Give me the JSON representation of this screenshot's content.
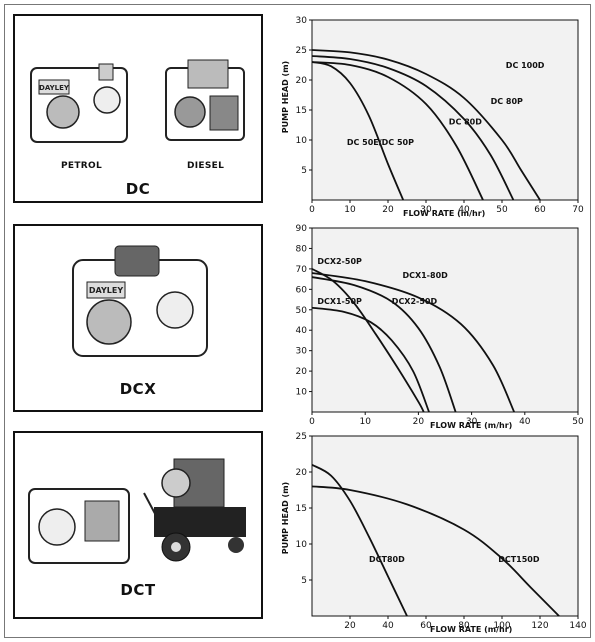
{
  "panels": [
    {
      "title": "DC",
      "captions": [
        "PETROL",
        "DIESEL"
      ]
    },
    {
      "title": "DCX",
      "captions": []
    },
    {
      "title": "DCT",
      "captions": []
    }
  ],
  "chart_data": [
    {
      "type": "line",
      "xlabel": "FLOW RATE (m/hr)",
      "ylabel": "PUMP HEAD (m)",
      "xlim": [
        0,
        70
      ],
      "ylim": [
        0,
        30
      ],
      "xticks": [
        "0",
        "10",
        "20",
        "30",
        "40",
        "50",
        "60",
        "70"
      ],
      "yticks": [
        "5",
        "10",
        "15",
        "20",
        "25",
        "30"
      ],
      "series": [
        {
          "name": "DC 100D",
          "points": [
            [
              0,
              25
            ],
            [
              10,
              24.6
            ],
            [
              20,
              23.4
            ],
            [
              30,
              21
            ],
            [
              40,
              17
            ],
            [
              50,
              10
            ],
            [
              55,
              5
            ],
            [
              60,
              0
            ]
          ]
        },
        {
          "name": "DC 80P",
          "points": [
            [
              0,
              24
            ],
            [
              10,
              23.5
            ],
            [
              20,
              22
            ],
            [
              30,
              19
            ],
            [
              40,
              13.5
            ],
            [
              47,
              7.5
            ],
            [
              53,
              0
            ]
          ]
        },
        {
          "name": "DC 80D",
          "points": [
            [
              0,
              23
            ],
            [
              10,
              22.5
            ],
            [
              20,
              20.5
            ],
            [
              30,
              16
            ],
            [
              38,
              9
            ],
            [
              45,
              0
            ]
          ]
        },
        {
          "name": "DC 50E/DC 50P",
          "points": [
            [
              0,
              23
            ],
            [
              5,
              22.3
            ],
            [
              10,
              19.5
            ],
            [
              15,
              14
            ],
            [
              20,
              6
            ],
            [
              24,
              0
            ]
          ]
        }
      ]
    },
    {
      "type": "line",
      "xlabel": "FLOW RATE (m/hr)",
      "ylabel": "",
      "xlim": [
        0,
        50
      ],
      "ylim": [
        0,
        90
      ],
      "xticks": [
        "0",
        "10",
        "20",
        "30",
        "40",
        "50"
      ],
      "yticks": [
        "10",
        "20",
        "30",
        "40",
        "50",
        "60",
        "70",
        "80",
        "90"
      ],
      "series": [
        {
          "name": "DCX2-50P",
          "points": [
            [
              0,
              70
            ],
            [
              4,
              64
            ],
            [
              8,
              53
            ],
            [
              12,
              38
            ],
            [
              16,
              22
            ],
            [
              20,
              5
            ],
            [
              21,
              0
            ]
          ]
        },
        {
          "name": "DCX1-80D",
          "points": [
            [
              0,
              68
            ],
            [
              10,
              64
            ],
            [
              20,
              56
            ],
            [
              28,
              43
            ],
            [
              34,
              23
            ],
            [
              38,
              0
            ]
          ]
        },
        {
          "name": "DCX2-50D",
          "points": [
            [
              0,
              66
            ],
            [
              8,
              62
            ],
            [
              15,
              54
            ],
            [
              20,
              41
            ],
            [
              24,
              22
            ],
            [
              27,
              0
            ]
          ]
        },
        {
          "name": "DCX1-50P",
          "points": [
            [
              0,
              51
            ],
            [
              6,
              49
            ],
            [
              11,
              44
            ],
            [
              15,
              35
            ],
            [
              19,
              20
            ],
            [
              22,
              0
            ]
          ]
        }
      ]
    },
    {
      "type": "line",
      "xlabel": "FLOW RATE (m/hr)",
      "ylabel": "PUMP HEAD (m)",
      "xlim": [
        0,
        140
      ],
      "ylim": [
        0,
        25
      ],
      "xticks": [
        "20",
        "40",
        "60",
        "80",
        "100",
        "120",
        "140"
      ],
      "yticks": [
        "5",
        "10",
        "15",
        "20",
        "25"
      ],
      "series": [
        {
          "name": "DCT80D",
          "points": [
            [
              0,
              21
            ],
            [
              10,
              19.5
            ],
            [
              20,
              16
            ],
            [
              30,
              11
            ],
            [
              40,
              5.5
            ],
            [
              50,
              0
            ]
          ]
        },
        {
          "name": "DCT150D",
          "points": [
            [
              0,
              18
            ],
            [
              20,
              17.5
            ],
            [
              50,
              15.5
            ],
            [
              80,
              12
            ],
            [
              100,
              8
            ],
            [
              115,
              4
            ],
            [
              130,
              0
            ]
          ]
        }
      ]
    }
  ]
}
